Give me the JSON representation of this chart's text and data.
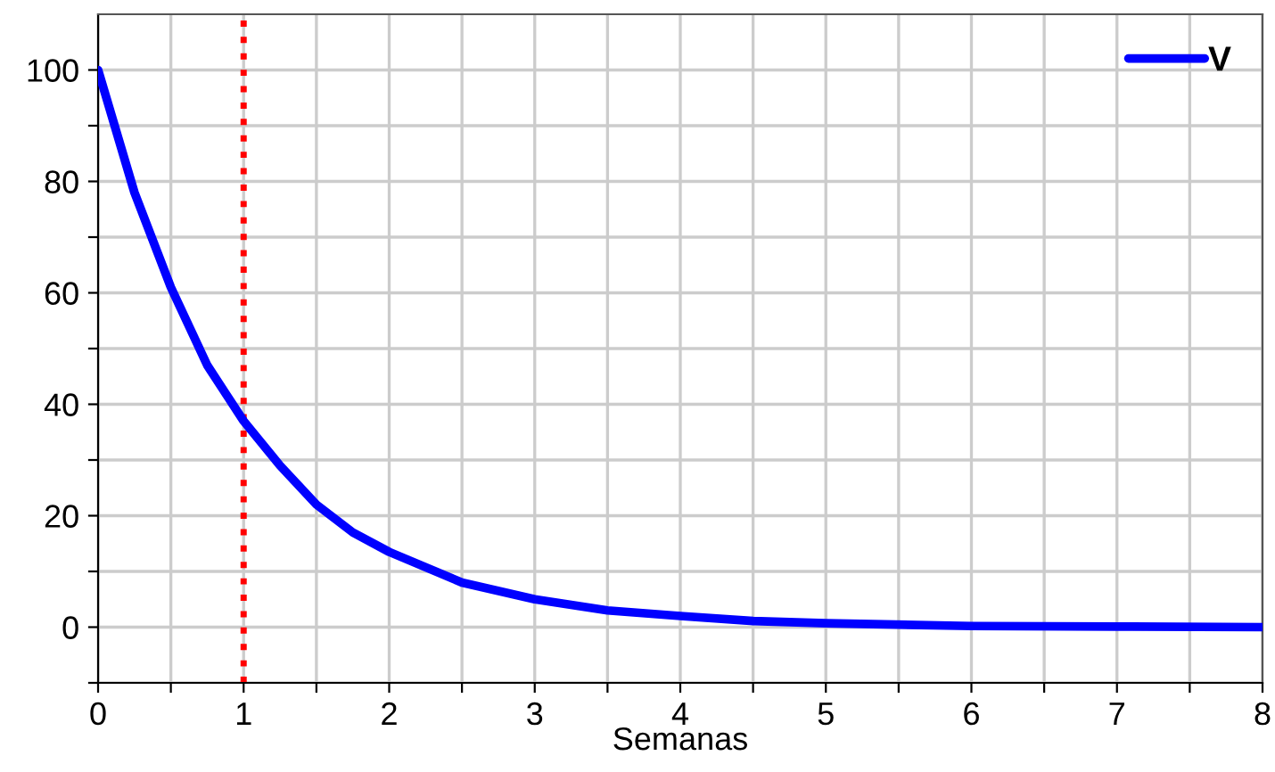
{
  "chart_data": {
    "type": "line",
    "xlabel": "Semanas",
    "x": [
      0,
      0.25,
      0.5,
      0.75,
      1,
      1.25,
      1.5,
      1.75,
      2,
      2.5,
      3,
      3.5,
      4,
      4.5,
      5,
      6,
      7,
      8
    ],
    "series": [
      {
        "name": "V",
        "color": "#0000ff",
        "values": [
          100,
          78,
          61,
          47,
          37,
          29,
          22,
          17,
          13.5,
          8,
          5,
          3,
          2,
          1.1,
          0.7,
          0.2,
          0.1,
          0
        ]
      }
    ],
    "xlim": [
      0,
      8
    ],
    "ylim": [
      -10,
      110
    ],
    "xticks": [
      0,
      {
        "value": 0.5,
        "label": null
      },
      1,
      {
        "value": 1.5,
        "label": null
      },
      2,
      {
        "value": 2.5,
        "label": null
      },
      3,
      {
        "value": 3.5,
        "label": null
      },
      4,
      {
        "value": 4.5,
        "label": null
      },
      5,
      {
        "value": 5.5,
        "label": null
      },
      6,
      {
        "value": 6.5,
        "label": null
      },
      7,
      {
        "value": 7.5,
        "label": null
      },
      8
    ],
    "yticks": [
      {
        "value": -10,
        "label": null
      },
      0,
      {
        "value": 10,
        "label": null
      },
      20,
      {
        "value": 30,
        "label": null
      },
      40,
      {
        "value": 50,
        "label": null
      },
      60,
      {
        "value": 70,
        "label": null
      },
      80,
      {
        "value": 90,
        "label": null
      },
      100
    ],
    "ref_lines": [
      {
        "axis": "x",
        "value": 1,
        "color": "#ff0000",
        "line_style": "dotted"
      }
    ],
    "grid": true,
    "legend": "top right",
    "line_style": "solid"
  }
}
